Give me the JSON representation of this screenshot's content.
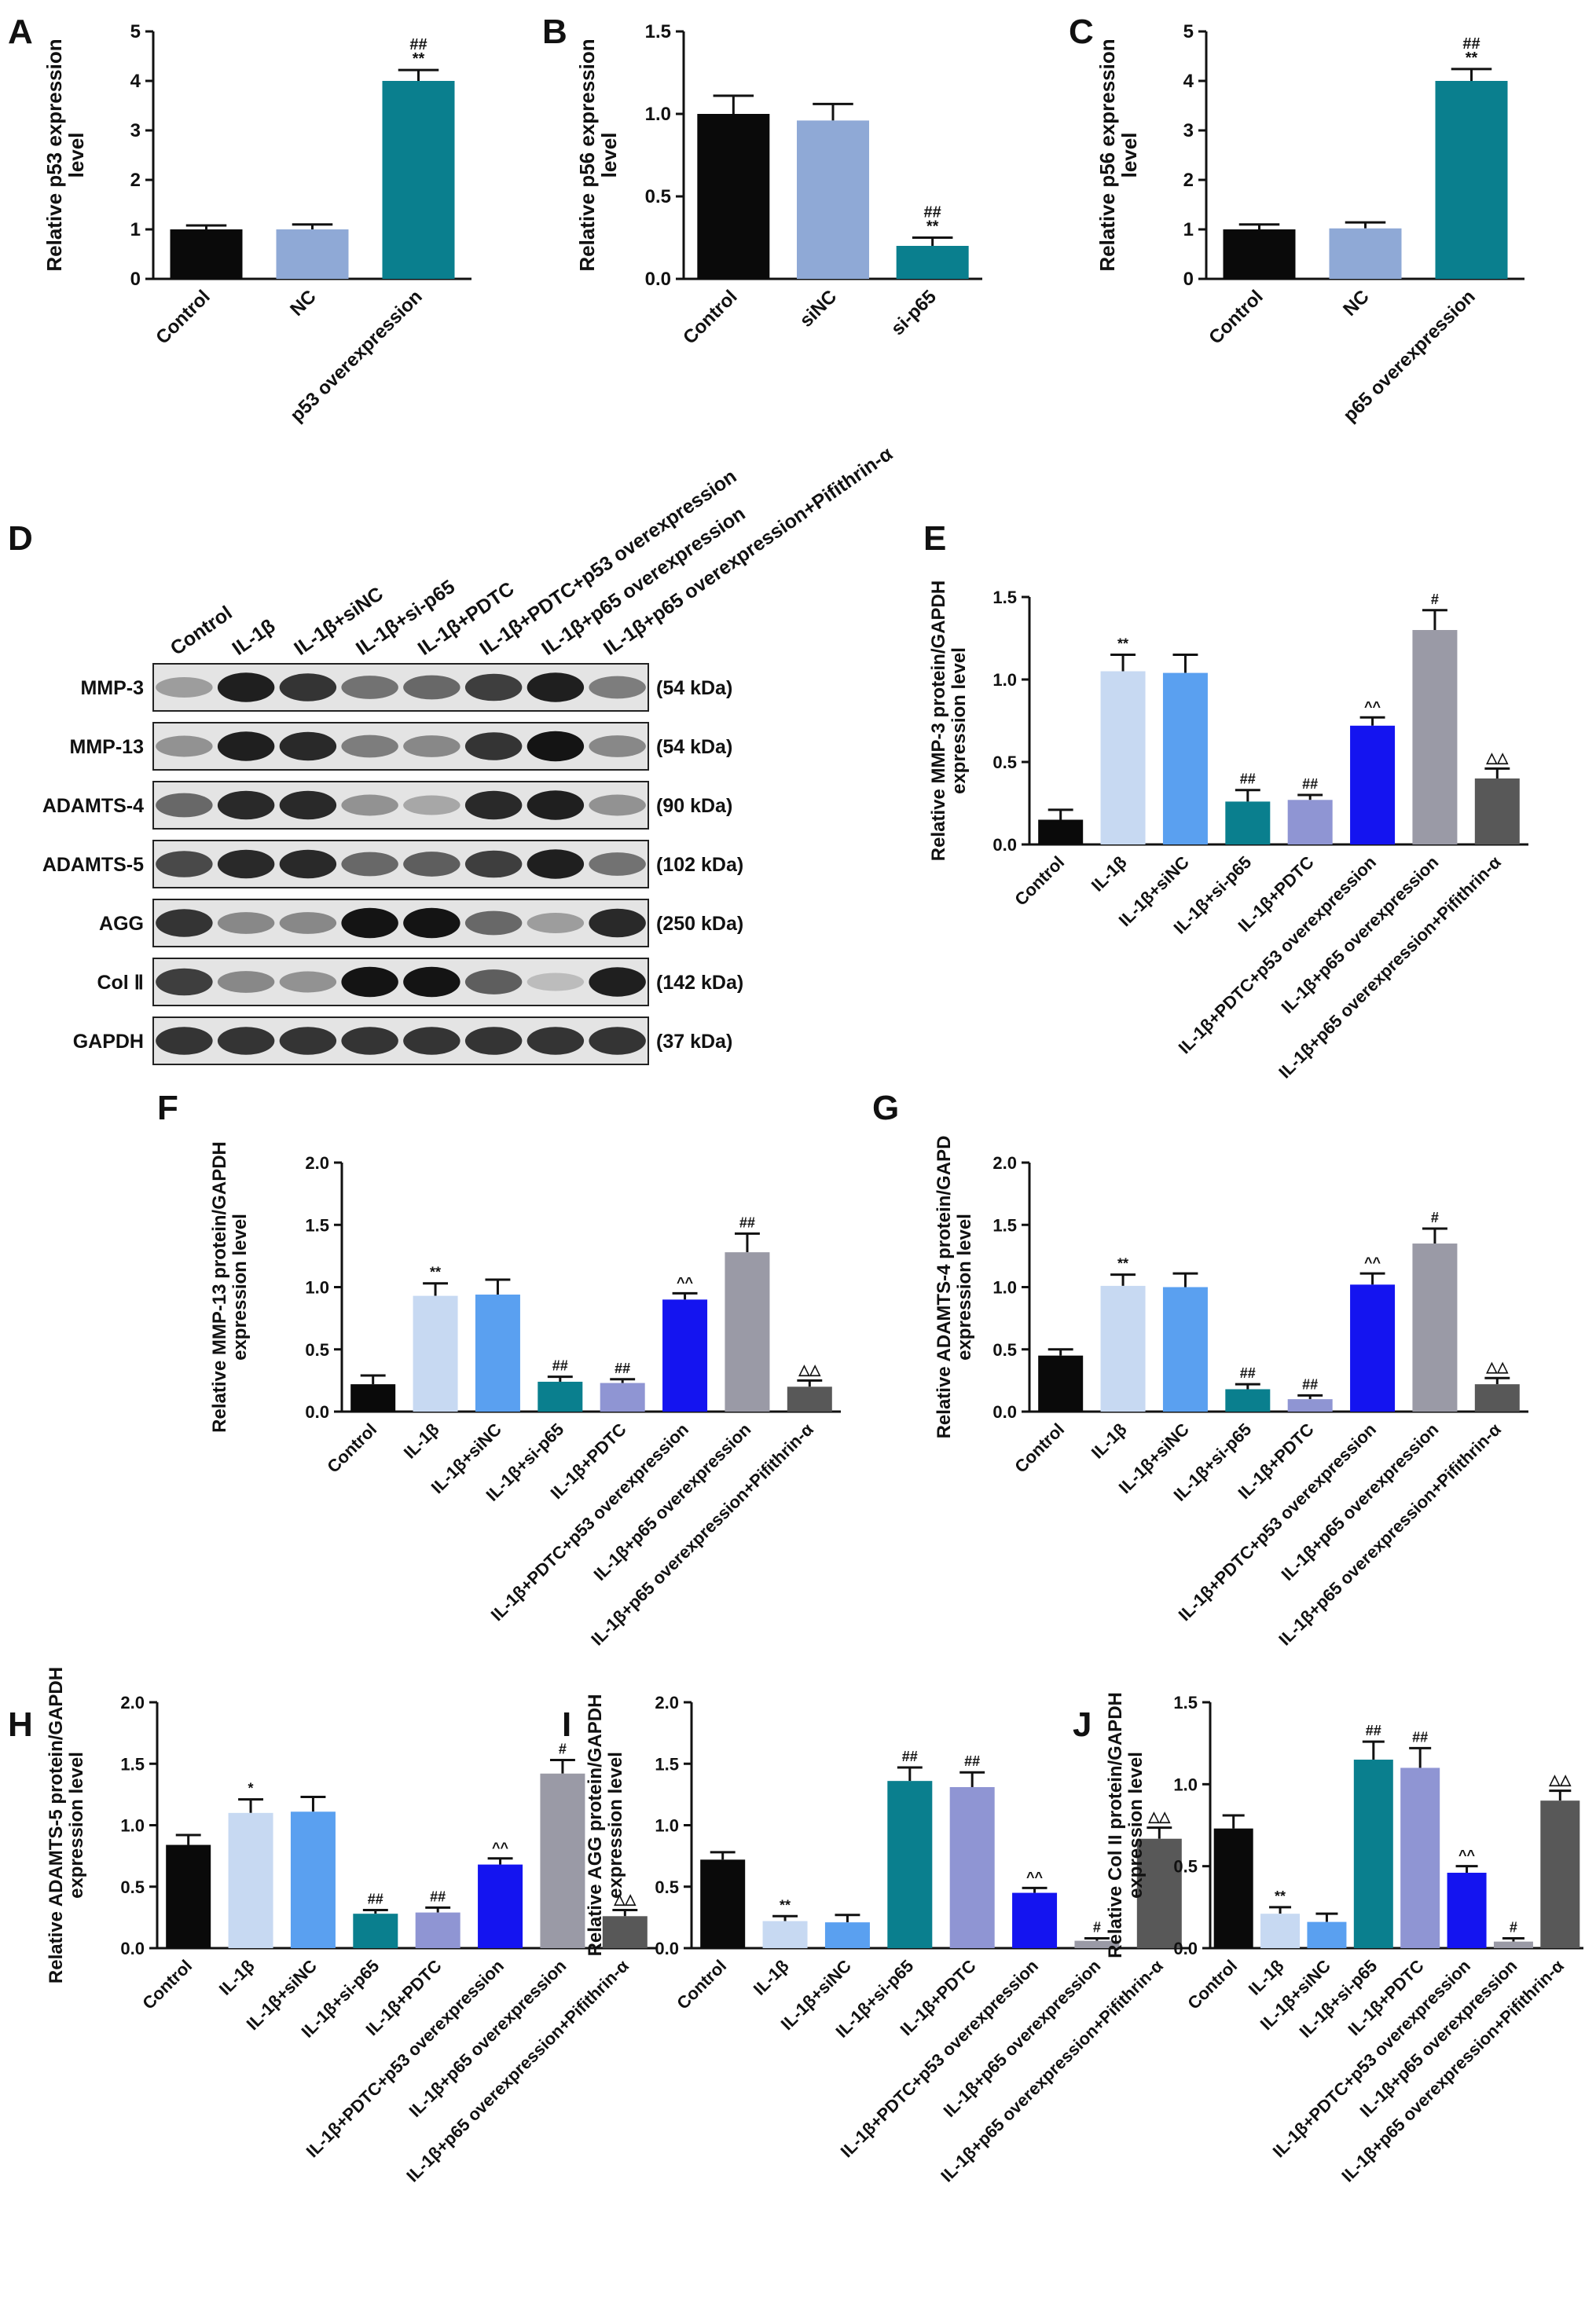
{
  "colors": {
    "black": "#0a0a0a",
    "light_blue": "#c7d9f2",
    "med_blue": "#5aa0f0",
    "teal": "#0a7f8e",
    "lavender": "#8f95d3",
    "royal_blue": "#1414f0",
    "gray": "#9a9aa6",
    "dark_gray": "#585858",
    "nc_blue": "#8fa9d6"
  },
  "chart_data": [
    {
      "panel": "A",
      "type": "bar",
      "ylabel": "Relative p53 expression level",
      "ylim": [
        0,
        5
      ],
      "yticks": [
        "0",
        "1",
        "2",
        "3",
        "4",
        "5"
      ],
      "categories": [
        "Control",
        "NC",
        "p53 overexpression"
      ],
      "values": [
        1.0,
        1.0,
        4.0
      ],
      "errors": [
        0.08,
        0.1,
        0.22
      ],
      "annotations": [
        "",
        "",
        "##\n**"
      ],
      "bar_colors": [
        "black",
        "nc_blue",
        "teal"
      ]
    },
    {
      "panel": "B",
      "type": "bar",
      "ylabel": "Relative p56 expression level",
      "ylim": [
        0,
        1.5
      ],
      "yticks": [
        "0.0",
        "0.5",
        "1.0",
        "1.5"
      ],
      "categories": [
        "Control",
        "siNC",
        "si-p65"
      ],
      "values": [
        1.0,
        0.96,
        0.2
      ],
      "errors": [
        0.11,
        0.1,
        0.05
      ],
      "annotations": [
        "",
        "",
        "##\n**"
      ],
      "bar_colors": [
        "black",
        "nc_blue",
        "teal"
      ]
    },
    {
      "panel": "C",
      "type": "bar",
      "ylabel": "Relative p56 expression level",
      "ylim": [
        0,
        5
      ],
      "yticks": [
        "0",
        "1",
        "2",
        "3",
        "4",
        "5"
      ],
      "categories": [
        "Control",
        "NC",
        "p65 overexpression"
      ],
      "values": [
        1.0,
        1.02,
        4.0
      ],
      "errors": [
        0.1,
        0.12,
        0.24
      ],
      "annotations": [
        "",
        "",
        "##\n**"
      ],
      "bar_colors": [
        "black",
        "nc_blue",
        "teal"
      ]
    },
    {
      "panel": "E",
      "type": "bar",
      "ylabel": "Relative MMP-3 protein/GAPDH expression level",
      "ylim": [
        0,
        1.5
      ],
      "yticks": [
        "0.0",
        "0.5",
        "1.0",
        "1.5"
      ],
      "categories": [
        "Control",
        "IL-1β",
        "IL-1β+siNC",
        "IL-1β+si-p65",
        "IL-1β+PDTC",
        "IL-1β+PDTC+p53 overexpression",
        "IL-1β+p65 overexpression",
        "IL-1β+p65 overexpression+Pifithrin-α"
      ],
      "values": [
        0.15,
        1.05,
        1.04,
        0.26,
        0.27,
        0.72,
        1.3,
        0.4
      ],
      "errors": [
        0.06,
        0.1,
        0.11,
        0.07,
        0.03,
        0.05,
        0.12,
        0.06
      ],
      "annotations": [
        "",
        "**",
        "",
        "##",
        "##",
        "^^",
        "#",
        "△△"
      ],
      "bar_colors": [
        "black",
        "light_blue",
        "med_blue",
        "teal",
        "lavender",
        "royal_blue",
        "gray",
        "dark_gray"
      ]
    },
    {
      "panel": "F",
      "type": "bar",
      "ylabel": "Relative MMP-13 protein/GAPDH expression level",
      "ylim": [
        0,
        2.0
      ],
      "yticks": [
        "0.0",
        "0.5",
        "1.0",
        "1.5",
        "2.0"
      ],
      "categories": [
        "Control",
        "IL-1β",
        "IL-1β+siNC",
        "IL-1β+si-p65",
        "IL-1β+PDTC",
        "IL-1β+PDTC+p53 overexpression",
        "IL-1β+p65 overexpression",
        "IL-1β+p65 overexpression+Pifithrin-α"
      ],
      "values": [
        0.22,
        0.93,
        0.94,
        0.24,
        0.23,
        0.9,
        1.28,
        0.2
      ],
      "errors": [
        0.07,
        0.1,
        0.12,
        0.04,
        0.03,
        0.05,
        0.15,
        0.05
      ],
      "annotations": [
        "",
        "**",
        "",
        "##",
        "##",
        "^^",
        "##",
        "△△"
      ],
      "bar_colors": [
        "black",
        "light_blue",
        "med_blue",
        "teal",
        "lavender",
        "royal_blue",
        "gray",
        "dark_gray"
      ]
    },
    {
      "panel": "G",
      "type": "bar",
      "ylabel": "Relative ADAMTS-4 protein/GAPD expression level",
      "ylim": [
        0,
        2.0
      ],
      "yticks": [
        "0.0",
        "0.5",
        "1.0",
        "1.5",
        "2.0"
      ],
      "categories": [
        "Control",
        "IL-1β",
        "IL-1β+siNC",
        "IL-1β+si-p65",
        "IL-1β+PDTC",
        "IL-1β+PDTC+p53 overexpression",
        "IL-1β+p65 overexpression",
        "IL-1β+p65 overexpression+Pifithrin-α"
      ],
      "values": [
        0.45,
        1.01,
        1.0,
        0.18,
        0.1,
        1.02,
        1.35,
        0.22
      ],
      "errors": [
        0.05,
        0.09,
        0.11,
        0.04,
        0.03,
        0.09,
        0.12,
        0.05
      ],
      "annotations": [
        "",
        "**",
        "",
        "##",
        "##",
        "^^",
        "#",
        "△△"
      ],
      "bar_colors": [
        "black",
        "light_blue",
        "med_blue",
        "teal",
        "lavender",
        "royal_blue",
        "gray",
        "dark_gray"
      ]
    },
    {
      "panel": "H",
      "type": "bar",
      "ylabel": "Relative ADAMTS-5 protein/GAPDH expression level",
      "ylim": [
        0,
        2.0
      ],
      "yticks": [
        "0.0",
        "0.5",
        "1.0",
        "1.5",
        "2.0"
      ],
      "categories": [
        "Control",
        "IL-1β",
        "IL-1β+siNC",
        "IL-1β+si-p65",
        "IL-1β+PDTC",
        "IL-1β+PDTC+p53 overexpression",
        "IL-1β+p65 overexpression",
        "IL-1β+p65 overexpression+Pifithrin-α"
      ],
      "values": [
        0.84,
        1.1,
        1.11,
        0.28,
        0.29,
        0.68,
        1.42,
        0.26
      ],
      "errors": [
        0.08,
        0.11,
        0.12,
        0.03,
        0.04,
        0.05,
        0.11,
        0.05
      ],
      "annotations": [
        "",
        "*",
        "",
        "##",
        "##",
        "^^",
        "#",
        "△△"
      ],
      "bar_colors": [
        "black",
        "light_blue",
        "med_blue",
        "teal",
        "lavender",
        "royal_blue",
        "gray",
        "dark_gray"
      ]
    },
    {
      "panel": "I",
      "type": "bar",
      "ylabel": "Relative AGG protein/GAPDH expression level",
      "ylim": [
        0,
        2.0
      ],
      "yticks": [
        "0.0",
        "0.5",
        "1.0",
        "1.5",
        "2.0"
      ],
      "categories": [
        "Control",
        "IL-1β",
        "IL-1β+siNC",
        "IL-1β+si-p65",
        "IL-1β+PDTC",
        "IL-1β+PDTC+p53 overexpression",
        "IL-1β+p65 overexpression",
        "IL-1β+p65 overexpression+Pifithrin-α"
      ],
      "values": [
        0.72,
        0.22,
        0.21,
        1.36,
        1.31,
        0.45,
        0.06,
        0.89
      ],
      "errors": [
        0.06,
        0.04,
        0.06,
        0.11,
        0.12,
        0.04,
        0.02,
        0.09
      ],
      "annotations": [
        "",
        "**",
        "",
        "##",
        "##",
        "^^",
        "#",
        "△△"
      ],
      "bar_colors": [
        "black",
        "light_blue",
        "med_blue",
        "teal",
        "lavender",
        "royal_blue",
        "gray",
        "dark_gray"
      ]
    },
    {
      "panel": "J",
      "type": "bar",
      "ylabel": "Relative Col II protein/GAPDH expression level",
      "ylim": [
        0,
        1.5
      ],
      "yticks": [
        "0.0",
        "0.5",
        "1.0",
        "1.5"
      ],
      "categories": [
        "Control",
        "IL-1β",
        "IL-1β+siNC",
        "IL-1β+si-p65",
        "IL-1β+PDTC",
        "IL-1β+PDTC+p53 overexpression",
        "IL-1β+p65 overexpression",
        "IL-1β+p65 overexpression+Pifithrin-α"
      ],
      "values": [
        0.73,
        0.21,
        0.16,
        1.15,
        1.1,
        0.46,
        0.04,
        0.9
      ],
      "errors": [
        0.08,
        0.04,
        0.05,
        0.11,
        0.12,
        0.04,
        0.02,
        0.06
      ],
      "annotations": [
        "",
        "**",
        "",
        "##",
        "##",
        "^^",
        "#",
        "△△"
      ],
      "bar_colors": [
        "black",
        "light_blue",
        "med_blue",
        "teal",
        "lavender",
        "royal_blue",
        "gray",
        "dark_gray"
      ]
    }
  ],
  "western_blot": {
    "panel": "D",
    "lanes": [
      "Control",
      "IL-1β",
      "IL-1β+siNC",
      "IL-1β+si-p65",
      "IL-1β+PDTC",
      "IL-1β+PDTC+p53 overexpression",
      "IL-1β+p65 overexpression",
      "IL-1β+p65 overexpression+Pifithrin-α"
    ],
    "rows": [
      {
        "label": "MMP-3",
        "size": "(54 kDa)",
        "intensity": [
          0.35,
          0.95,
          0.85,
          0.55,
          0.6,
          0.8,
          0.95,
          0.5
        ]
      },
      {
        "label": "MMP-13",
        "size": "(54 kDa)",
        "intensity": [
          0.4,
          0.95,
          0.9,
          0.5,
          0.45,
          0.85,
          1.0,
          0.45
        ]
      },
      {
        "label": "ADAMTS-4",
        "size": "(90 kDa)",
        "intensity": [
          0.6,
          0.9,
          0.9,
          0.4,
          0.3,
          0.9,
          0.95,
          0.4
        ]
      },
      {
        "label": "ADAMTS-5",
        "size": "(102 kDa)",
        "intensity": [
          0.75,
          0.9,
          0.9,
          0.6,
          0.65,
          0.8,
          0.95,
          0.55
        ]
      },
      {
        "label": "AGG",
        "size": "(250 kDa)",
        "intensity": [
          0.85,
          0.45,
          0.45,
          1.0,
          1.0,
          0.6,
          0.35,
          0.9
        ]
      },
      {
        "label": "Col Ⅱ",
        "size": "(142 kDa)",
        "intensity": [
          0.8,
          0.45,
          0.4,
          1.0,
          1.0,
          0.65,
          0.2,
          0.95
        ]
      },
      {
        "label": "GAPDH",
        "size": "(37 kDa)",
        "intensity": [
          0.85,
          0.85,
          0.85,
          0.85,
          0.85,
          0.85,
          0.85,
          0.85
        ]
      }
    ]
  }
}
